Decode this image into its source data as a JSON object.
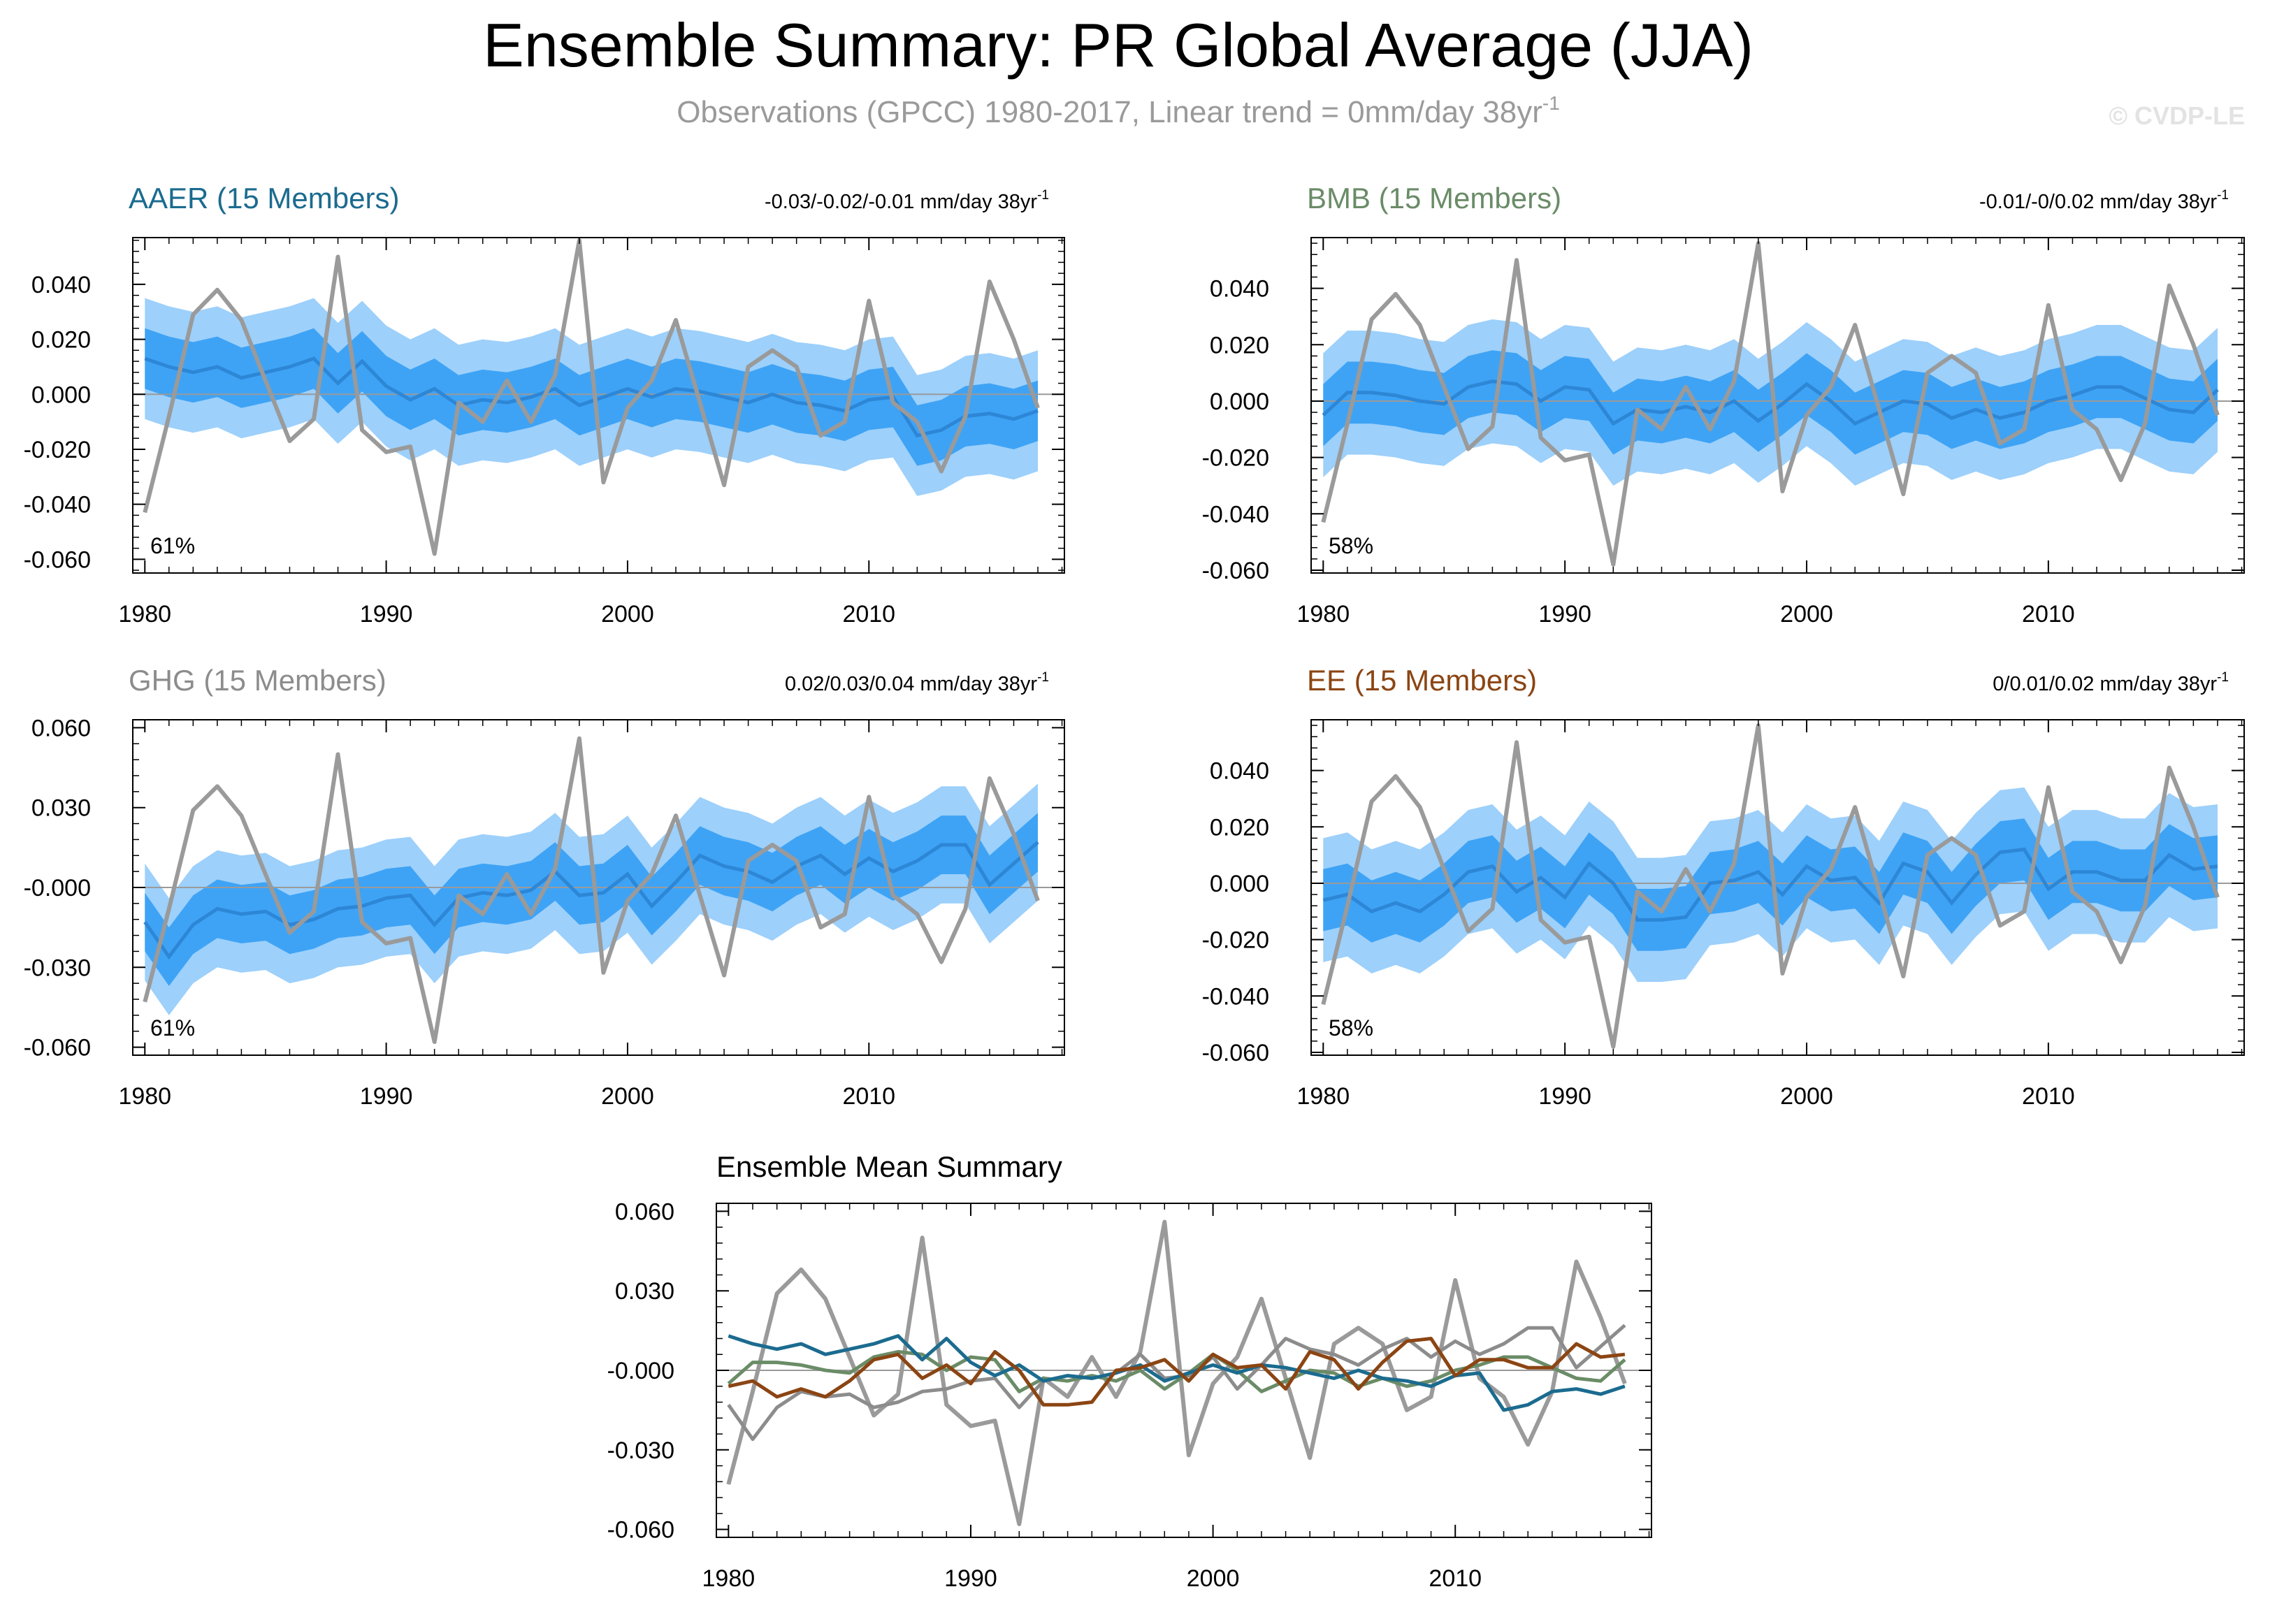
{
  "title": "Ensemble Summary: PR Global Average (JJA)",
  "subtitle": "Observations (GPCC) 1980-2017, Linear trend = 0mm/day 38yr",
  "subtitle_sup": "-1",
  "watermark": "© CVDP-LE",
  "years": [
    1980,
    1981,
    1982,
    1983,
    1984,
    1985,
    1986,
    1987,
    1988,
    1989,
    1990,
    1991,
    1992,
    1993,
    1994,
    1995,
    1996,
    1997,
    1998,
    1999,
    2000,
    2001,
    2002,
    2003,
    2004,
    2005,
    2006,
    2007,
    2008,
    2009,
    2010,
    2011,
    2012,
    2013,
    2014,
    2015,
    2016,
    2017
  ],
  "obs": [
    -0.043,
    -0.008,
    0.029,
    0.038,
    0.027,
    0.005,
    -0.017,
    -0.009,
    0.05,
    -0.013,
    -0.021,
    -0.019,
    -0.058,
    -0.003,
    -0.01,
    0.005,
    -0.01,
    0.007,
    0.056,
    -0.032,
    -0.005,
    0.005,
    0.027,
    -0.003,
    -0.033,
    0.01,
    0.016,
    0.01,
    -0.015,
    -0.01,
    0.034,
    -0.003,
    -0.01,
    -0.028,
    -0.008,
    0.041,
    0.02,
    -0.005
  ],
  "chart_data": [
    {
      "type": "area",
      "panel": "AAER",
      "title": "AAER (15 Members)",
      "title_color": "#1b6b8f",
      "trend_text": "-0.03/-0.02/-0.01 mm/day 38yr",
      "percent": "61%",
      "ylim": [
        -0.065,
        0.057
      ],
      "yticks": [
        -0.06,
        -0.04,
        -0.02,
        0.0,
        0.02,
        0.04
      ],
      "ytick_labels": [
        "-0.060",
        "-0.040",
        "-0.020",
        "0.000",
        "0.020",
        "0.040"
      ],
      "xticks": [
        1980,
        1990,
        2000,
        2010
      ],
      "mean": [
        0.013,
        0.01,
        0.008,
        0.01,
        0.006,
        0.008,
        0.01,
        0.013,
        0.004,
        0.012,
        0.003,
        -0.002,
        0.002,
        -0.004,
        -0.002,
        -0.003,
        -0.001,
        0.002,
        -0.004,
        -0.001,
        0.002,
        -0.001,
        0.002,
        0.001,
        -0.001,
        -0.003,
        0.0,
        -0.003,
        -0.004,
        -0.006,
        -0.002,
        -0.001,
        -0.015,
        -0.013,
        -0.008,
        -0.007,
        -0.009,
        -0.006
      ],
      "spread_outer": 0.022,
      "spread_inner": 0.011
    },
    {
      "type": "area",
      "panel": "BMB",
      "title": "BMB (15 Members)",
      "title_color": "#6a8c67",
      "trend_text": "-0.01/-0/0.02 mm/day 38yr",
      "percent": "58%",
      "ylim": [
        -0.061,
        0.058
      ],
      "yticks": [
        -0.06,
        -0.04,
        -0.02,
        0.0,
        0.02,
        0.04
      ],
      "ytick_labels": [
        "-0.060",
        "-0.040",
        "-0.020",
        "0.000",
        "0.020",
        "0.040"
      ],
      "xticks": [
        1980,
        1990,
        2000,
        2010
      ],
      "mean": [
        -0.005,
        0.003,
        0.003,
        0.002,
        0.0,
        -0.001,
        0.005,
        0.007,
        0.006,
        0.0,
        0.005,
        0.004,
        -0.008,
        -0.003,
        -0.004,
        -0.002,
        -0.004,
        0.0,
        -0.007,
        -0.001,
        0.006,
        0.0,
        -0.008,
        -0.004,
        0.0,
        -0.001,
        -0.006,
        -0.003,
        -0.006,
        -0.004,
        0.0,
        0.002,
        0.005,
        0.005,
        0.001,
        -0.003,
        -0.004,
        0.004
      ],
      "spread_outer": 0.022,
      "spread_inner": 0.011
    },
    {
      "type": "area",
      "panel": "GHG",
      "title": "GHG (15 Members)",
      "title_color": "#8c8c8c",
      "trend_text": "0.02/0.03/0.04 mm/day 38yr",
      "percent": "61%",
      "ylim": [
        -0.063,
        0.063
      ],
      "yticks": [
        -0.06,
        -0.03,
        0.0,
        0.03,
        0.06
      ],
      "ytick_labels": [
        "-0.060",
        "-0.030",
        "-0.000",
        "0.030",
        "0.060"
      ],
      "xticks": [
        1980,
        1990,
        2000,
        2010
      ],
      "mean": [
        -0.013,
        -0.026,
        -0.014,
        -0.008,
        -0.01,
        -0.009,
        -0.014,
        -0.012,
        -0.008,
        -0.007,
        -0.004,
        -0.003,
        -0.014,
        -0.004,
        -0.002,
        -0.003,
        -0.001,
        0.006,
        -0.003,
        -0.002,
        0.005,
        -0.007,
        0.002,
        0.012,
        0.008,
        0.006,
        0.002,
        0.008,
        0.012,
        0.005,
        0.011,
        0.006,
        0.01,
        0.016,
        0.016,
        0.001,
        0.009,
        0.017
      ],
      "spread_outer": 0.022,
      "spread_inner": 0.011
    },
    {
      "type": "area",
      "panel": "EE",
      "title": "EE (15 Members)",
      "title_color": "#8b4513",
      "trend_text": "0/0.01/0.02 mm/day 38yr",
      "percent": "58%",
      "ylim": [
        -0.061,
        0.058
      ],
      "yticks": [
        -0.06,
        -0.04,
        -0.02,
        0.0,
        0.02,
        0.04
      ],
      "ytick_labels": [
        "-0.060",
        "-0.040",
        "-0.020",
        "0.000",
        "0.020",
        "0.040"
      ],
      "xticks": [
        1980,
        1990,
        2000,
        2010
      ],
      "mean": [
        -0.006,
        -0.004,
        -0.01,
        -0.007,
        -0.01,
        -0.004,
        0.004,
        0.006,
        -0.003,
        0.002,
        -0.005,
        0.007,
        0.0,
        -0.013,
        -0.013,
        -0.012,
        0.0,
        0.001,
        0.004,
        -0.004,
        0.006,
        0.001,
        0.002,
        -0.007,
        0.007,
        0.004,
        -0.007,
        0.003,
        0.011,
        0.012,
        -0.002,
        0.004,
        0.004,
        0.001,
        0.001,
        0.01,
        0.005,
        0.006
      ],
      "spread_outer": 0.022,
      "spread_inner": 0.011
    },
    {
      "type": "line",
      "panel": "Ensemble Mean",
      "title": "Ensemble Mean Summary",
      "title_color": "#000000",
      "ylim": [
        -0.063,
        0.063
      ],
      "yticks": [
        -0.06,
        -0.03,
        0.0,
        0.03,
        0.06
      ],
      "ytick_labels": [
        "-0.060",
        "-0.030",
        "-0.000",
        "0.030",
        "0.060"
      ],
      "xticks": [
        1980,
        1990,
        2000,
        2010
      ],
      "series_names": [
        "Observations",
        "AAER",
        "BMB",
        "GHG",
        "EE"
      ],
      "series_colors": [
        "#9a9a9a",
        "#1b6b8f",
        "#6a8c67",
        "#8c8c8c",
        "#8b4513"
      ]
    }
  ],
  "colors": {
    "outer_band": "#9dd0fb",
    "inner_band": "#3ea3f5",
    "mean_line": "#2d86d6",
    "obs_line": "#9a9a9a",
    "zero_line": "#9a9a9a",
    "subtitle": "#9a9a9a",
    "watermark": "#e3e3e3"
  }
}
